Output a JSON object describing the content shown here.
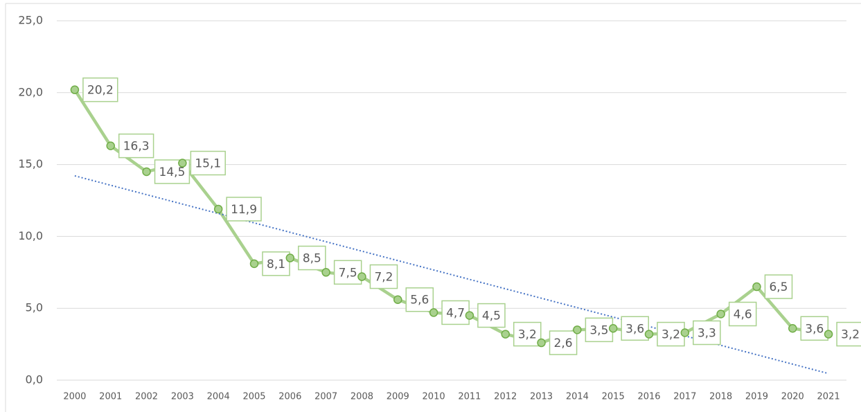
{
  "chart_data": {
    "type": "line",
    "categories": [
      "2000",
      "2001",
      "2002",
      "2003",
      "2004",
      "2005",
      "2006",
      "2007",
      "2008",
      "2009",
      "2010",
      "2011",
      "2012",
      "2013",
      "2014",
      "2015",
      "2016",
      "2017",
      "2018",
      "2019",
      "2020",
      "2021"
    ],
    "values": [
      20.2,
      16.3,
      14.5,
      15.1,
      11.9,
      8.1,
      8.5,
      7.5,
      7.2,
      5.6,
      4.7,
      4.5,
      3.2,
      2.6,
      3.5,
      3.6,
      3.2,
      3.3,
      4.6,
      6.5,
      3.6,
      3.2
    ],
    "value_labels": [
      "20,2",
      "16,3",
      "14,5",
      "15,1",
      "11,9",
      "8,1",
      "8,5",
      "7,5",
      "7,2",
      "5,6",
      "4,7",
      "4,5",
      "3,2",
      "2,6",
      "3,5",
      "3,6",
      "3,2",
      "3,3",
      "4,6",
      "6,5",
      "3,6",
      "3,2"
    ],
    "color": "#a9d18e",
    "marker_edge_color": "#70ad47",
    "trendline": "linear",
    "trendline_color": "#4472c4",
    "ylim": [
      0,
      25
    ],
    "yticks": [
      {
        "value": 0,
        "label": "0,0"
      },
      {
        "value": 5,
        "label": "5,0"
      },
      {
        "value": 10,
        "label": "10,0"
      },
      {
        "value": 15,
        "label": "15,0"
      },
      {
        "value": 20,
        "label": "20,0"
      },
      {
        "value": 25,
        "label": "25,0"
      }
    ],
    "grid": true
  }
}
